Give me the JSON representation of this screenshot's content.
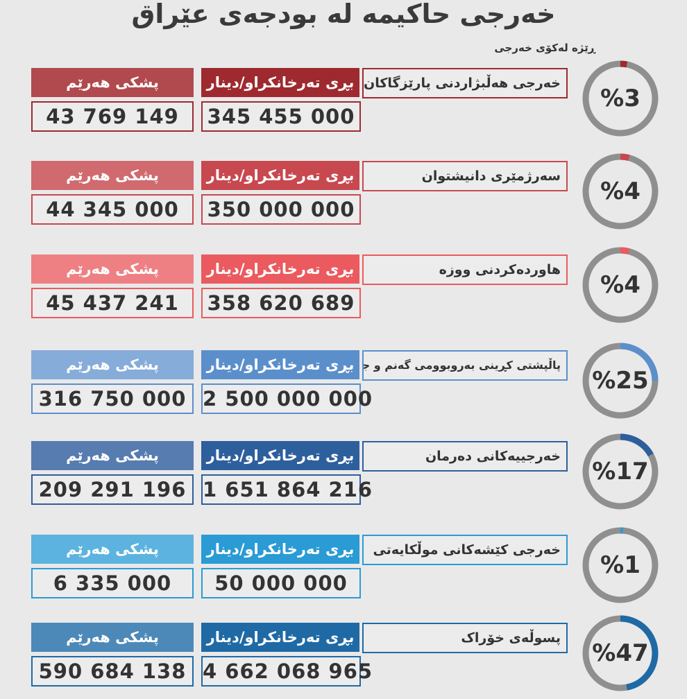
{
  "title": "خەرجی حاکیمە لە بودجەی عێراق",
  "subtitle": "ڕێژە لەکۆی خەرجی",
  "rows": [
    {
      "label": "خەرجی هەڵبژاردنی پارێزگاکان",
      "amount_header": "بڕی تەرخانکراو/دینار",
      "share_header": "پشکی هەرێم",
      "amount": "345 455 000",
      "share": "43 769 149",
      "percent_label": "%3",
      "percent": 3,
      "color": "#9e2a2f",
      "color_light": "#b14a4e"
    },
    {
      "label": "سەرژمێری دانیشتوان",
      "amount_header": "بڕی تەرخانکراو/دینار",
      "share_header": "پشکی هەرێم",
      "amount": "350 000 000",
      "share": "44 345 000",
      "percent_label": "%4",
      "percent": 4,
      "color": "#c8484f",
      "color_light": "#d06a6e"
    },
    {
      "label": "هاوردەکردنی ووزە",
      "amount_header": "بڕی تەرخانکراو/دینار",
      "share_header": "پشکی هەرێم",
      "amount": "358 620 689",
      "share": "45 437 241",
      "percent_label": "%4",
      "percent": 4,
      "color": "#ea5a5e",
      "color_light": "#ee8083"
    },
    {
      "label": "پاڵپشتی کڕینی بەروبوومی گەنم و جۆ",
      "amount_header": "بڕی تەرخانکراو/دینار",
      "share_header": "پشکی هەرێم",
      "amount": "2 500 000 000",
      "share": "316 750 000",
      "percent_label": "%25",
      "percent": 25,
      "color": "#5b8fcc",
      "color_light": "#86acd9"
    },
    {
      "label": "خەرجییەکانی دەرمان",
      "amount_header": "بڕی تەرخانکراو/دینار",
      "share_header": "پشکی هەرێم",
      "amount": "1 651 864 216",
      "share": "209 291 196",
      "percent_label": "%17",
      "percent": 17,
      "color": "#2e5f9d",
      "color_light": "#567cb0"
    },
    {
      "label": "خەرجی کێشەکانی موڵکایەتی",
      "amount_header": "بڕی تەرخانکراو/دینار",
      "share_header": "پشکی هەرێم",
      "amount": "50 000 000",
      "share": "6 335 000",
      "percent_label": "%1",
      "percent": 1,
      "color": "#2a9bd4",
      "color_light": "#5cb3df"
    },
    {
      "label": "پسوڵەی خۆراک",
      "amount_header": "بڕی تەرخانکراو/دینار",
      "share_header": "پشکی هەرێم",
      "amount": "4 662 068 965",
      "share": "590 684 138",
      "percent_label": "%47",
      "percent": 47,
      "color": "#1f6aa5",
      "color_light": "#4d89b8"
    }
  ]
}
